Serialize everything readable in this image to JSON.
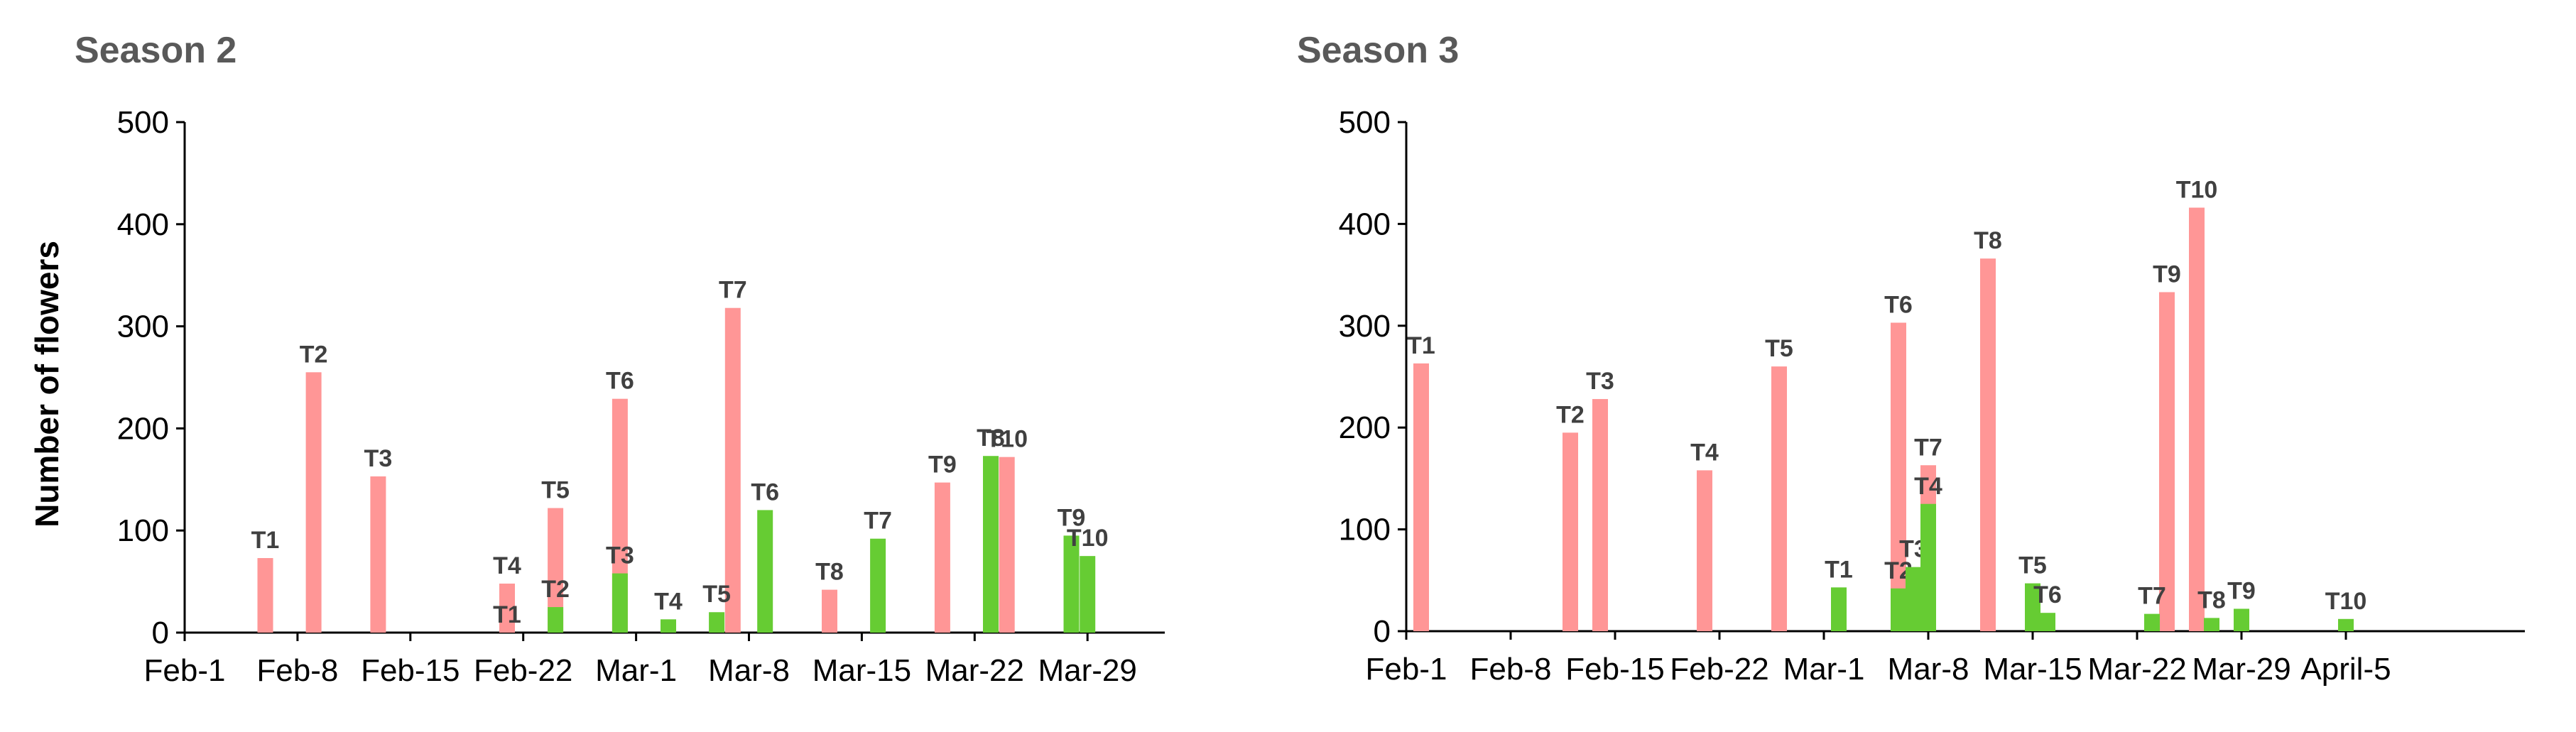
{
  "chart_data": [
    {
      "type": "bar",
      "title": "Season 2",
      "xlabel": "",
      "ylabel": "Number of flowers",
      "ylim": [
        0,
        500
      ],
      "yticks": [
        "0",
        "100",
        "200",
        "300",
        "400",
        "500"
      ],
      "xticks": [
        "Feb-1",
        "Feb-8",
        "Feb-15",
        "Feb-22",
        "Mar-1",
        "Mar-8",
        "Mar-15",
        "Mar-22",
        "Mar-29"
      ],
      "grid": false,
      "legend": "none",
      "series": [
        {
          "color": "#ff9696",
          "points": [
            {
              "date": "Feb-6",
              "value": 73,
              "label": "T1"
            },
            {
              "date": "Feb-9",
              "value": 255,
              "label": "T2"
            },
            {
              "date": "Feb-13",
              "value": 153,
              "label": "T3"
            },
            {
              "date": "Feb-21",
              "value": 48,
              "label": "T4"
            },
            {
              "date": "Feb-24",
              "value": 122,
              "label": "T5"
            },
            {
              "date": "Feb-28",
              "value": 229,
              "label": "T6"
            },
            {
              "date": "Mar-7",
              "value": 318,
              "label": "T7"
            },
            {
              "date": "Mar-13",
              "value": 42,
              "label": "T8"
            },
            {
              "date": "Mar-20",
              "value": 147,
              "label": "T9"
            },
            {
              "date": "Mar-24",
              "value": 172,
              "label": "T10"
            }
          ]
        },
        {
          "color": "#66cc33",
          "points": [
            {
              "date": "Feb-21",
              "value": 0,
              "label": "T1"
            },
            {
              "date": "Feb-24",
              "value": 25,
              "label": "T2"
            },
            {
              "date": "Feb-28",
              "value": 58,
              "label": "T3"
            },
            {
              "date": "Mar-3",
              "value": 13,
              "label": "T4"
            },
            {
              "date": "Mar-6",
              "value": 20,
              "label": "T5"
            },
            {
              "date": "Mar-9",
              "value": 120,
              "label": "T6"
            },
            {
              "date": "Mar-16",
              "value": 92,
              "label": "T7"
            },
            {
              "date": "Mar-23",
              "value": 173,
              "label": "T8"
            },
            {
              "date": "Mar-28",
              "value": 95,
              "label": "T9"
            },
            {
              "date": "Mar-29",
              "value": 75,
              "label": "T10"
            }
          ]
        }
      ]
    },
    {
      "type": "bar",
      "title": "Season 3",
      "xlabel": "",
      "ylabel": "",
      "ylim": [
        0,
        500
      ],
      "yticks": [
        "0",
        "100",
        "200",
        "300",
        "400",
        "500"
      ],
      "xticks": [
        "Feb-1",
        "Feb-8",
        "Feb-15",
        "Feb-22",
        "Mar-1",
        "Mar-8",
        "Mar-15",
        "Mar-22",
        "Mar-29",
        "April-5"
      ],
      "grid": false,
      "legend": "none",
      "series": [
        {
          "color": "#ff9696",
          "points": [
            {
              "date": "Feb-2",
              "value": 263,
              "label": "T1"
            },
            {
              "date": "Feb-12",
              "value": 195,
              "label": "T2"
            },
            {
              "date": "Feb-14",
              "value": 228,
              "label": "T3"
            },
            {
              "date": "Feb-21",
              "value": 158,
              "label": "T4"
            },
            {
              "date": "Feb-26",
              "value": 260,
              "label": "T5"
            },
            {
              "date": "Mar-6",
              "value": 303,
              "label": "T6"
            },
            {
              "date": "Mar-8",
              "value": 163,
              "label": "T7"
            },
            {
              "date": "Mar-12",
              "value": 366,
              "label": "T8"
            },
            {
              "date": "Mar-24",
              "value": 333,
              "label": "T9"
            },
            {
              "date": "Mar-26",
              "value": 416,
              "label": "T10"
            }
          ]
        },
        {
          "color": "#66cc33",
          "points": [
            {
              "date": "Mar-2",
              "value": 43,
              "label": "T1"
            },
            {
              "date": "Mar-6",
              "value": 42,
              "label": "T2"
            },
            {
              "date": "Mar-7",
              "value": 63,
              "label": "T3"
            },
            {
              "date": "Mar-8",
              "value": 125,
              "label": "T4"
            },
            {
              "date": "Mar-15",
              "value": 47,
              "label": "T5"
            },
            {
              "date": "Mar-16",
              "value": 18,
              "label": "T6"
            },
            {
              "date": "Mar-23",
              "value": 17,
              "label": "T7"
            },
            {
              "date": "Mar-27",
              "value": 13,
              "label": "T8"
            },
            {
              "date": "Mar-29",
              "value": 22,
              "label": "T9"
            },
            {
              "date": "April-5",
              "value": 12,
              "label": "T10"
            }
          ]
        }
      ]
    }
  ]
}
